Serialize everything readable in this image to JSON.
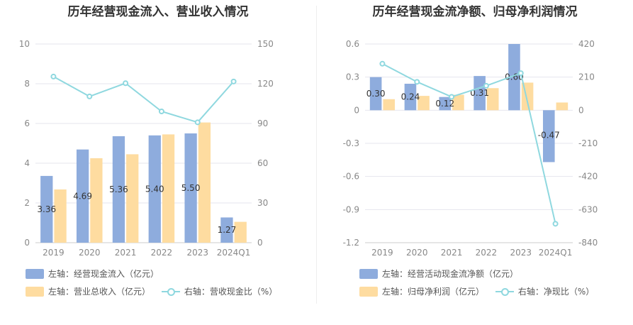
{
  "colors": {
    "bar1": "#8eacdd",
    "bar2": "#fedca0",
    "line": "#8fd8df",
    "grid": "#e6e6ee",
    "axis_text": "#888888"
  },
  "chart_data": [
    {
      "type": "bar",
      "title": "历年经营现金流入、营业收入情况",
      "categories": [
        "2019",
        "2020",
        "2021",
        "2022",
        "2023",
        "2024Q1"
      ],
      "left_axis": {
        "min": 0,
        "max": 10,
        "ticks": [
          "0",
          "2",
          "4",
          "6",
          "8",
          "10"
        ]
      },
      "right_axis": {
        "min": 0,
        "max": 150,
        "ticks": [
          "0",
          "30",
          "60",
          "90",
          "120",
          "150"
        ]
      },
      "series": [
        {
          "name": "左轴：经营现金流入（亿元）",
          "kind": "bar",
          "axis": "left",
          "values": [
            3.36,
            4.69,
            5.36,
            5.4,
            5.5,
            1.27
          ],
          "labels": [
            "3.36",
            "4.69",
            "5.36",
            "5.40",
            "5.50",
            "1.27"
          ]
        },
        {
          "name": "左轴：营业总收入（亿元）",
          "kind": "bar",
          "axis": "left",
          "values": [
            2.68,
            4.25,
            4.45,
            5.45,
            6.05,
            1.05
          ]
        },
        {
          "name": "右轴：营收现金比（%）",
          "kind": "line",
          "axis": "right",
          "values": [
            125.4,
            110.4,
            120.4,
            99.1,
            90.9,
            121.7
          ]
        }
      ]
    },
    {
      "type": "bar",
      "title": "历年经营现金流净额、归母净利润情况",
      "categories": [
        "2019",
        "2020",
        "2021",
        "2022",
        "2023",
        "2024Q1"
      ],
      "left_axis": {
        "min": -1.2,
        "max": 0.6,
        "ticks": [
          "-1.2",
          "-0.9",
          "-0.6",
          "-0.3",
          "0",
          "0.3",
          "0.6"
        ]
      },
      "right_axis": {
        "min": -840,
        "max": 420,
        "ticks": [
          "-840",
          "-630",
          "-420",
          "-210",
          "0",
          "210",
          "420"
        ]
      },
      "series": [
        {
          "name": "左轴：经营活动现金流净额（亿元）",
          "kind": "bar",
          "axis": "left",
          "values": [
            0.3,
            0.24,
            0.12,
            0.31,
            0.6,
            -0.47
          ],
          "labels": [
            "0.30",
            "0.24",
            "0.12",
            "0.31",
            "0.60",
            "-0.47"
          ]
        },
        {
          "name": "左轴：归母净利润（亿元）",
          "kind": "bar",
          "axis": "left",
          "values": [
            0.1,
            0.13,
            0.14,
            0.2,
            0.25,
            0.07
          ]
        },
        {
          "name": "右轴：净现比（%）",
          "kind": "line",
          "axis": "right",
          "values": [
            295,
            180,
            85,
            155,
            235,
            -720
          ]
        }
      ]
    }
  ]
}
